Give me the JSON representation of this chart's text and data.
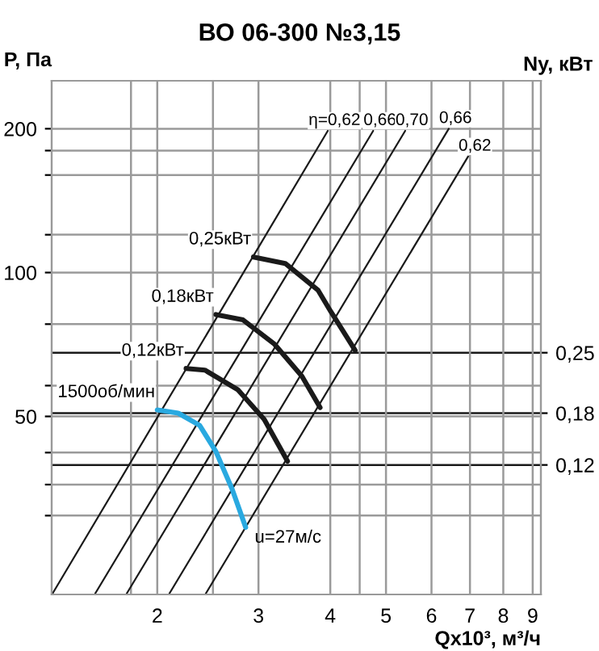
{
  "chart_data": {
    "type": "line",
    "title": "ВО 06-300 №3,15",
    "xlabel": "Qx10³, м³/ч",
    "ylabel": "P, Па",
    "y2label": "Ny, кВт",
    "log": "xy",
    "xlim": [
      1.31,
      9.3
    ],
    "ylim": [
      21.2,
      252
    ],
    "y2lim": [
      -0.03,
      0.565
    ],
    "xticks": [
      {
        "value": 1.8,
        "label": null
      },
      2,
      {
        "value": 2.5,
        "label": null
      },
      3,
      4,
      {
        "value": 4.5,
        "label": null
      },
      5,
      6,
      7,
      8,
      9
    ],
    "yticks": [
      {
        "value": 31,
        "label": null
      },
      {
        "value": 36,
        "label": null
      },
      {
        "value": 42,
        "label": null
      },
      50,
      {
        "value": 58,
        "label": null
      },
      {
        "value": 78,
        "label": null
      },
      100,
      {
        "value": 120,
        "label": null
      },
      {
        "value": 160,
        "label": null
      },
      {
        "value": 180,
        "label": null
      },
      200
    ],
    "y2ticks": [
      {
        "value": 0.12,
        "label": "0,12"
      },
      {
        "value": 0.18,
        "label": "0,18"
      },
      {
        "value": 0.25,
        "label": "0,25"
      }
    ],
    "grid": true,
    "marker": "none",
    "line_style": "solid",
    "series": [
      {
        "color": "#1a1a1a",
        "x": [
          1.315,
          3.96
        ],
        "values": [
          21.3,
          198
        ]
      },
      {
        "color": "#1a1a1a",
        "x": [
          1.56,
          4.75
        ],
        "values": [
          21.3,
          198
        ]
      },
      {
        "color": "#1a1a1a",
        "x": [
          1.77,
          5.4
        ],
        "values": [
          21.3,
          198
        ]
      },
      {
        "color": "#1a1a1a",
        "x": [
          2.1,
          6.43
        ],
        "values": [
          21.3,
          200
        ]
      },
      {
        "color": "#1a1a1a",
        "x": [
          2.43,
          6.95
        ],
        "values": [
          21.3,
          175
        ]
      },
      {
        "name": "1500об/мин",
        "color": "#29a9e0",
        "x": [
          2.0,
          2.175,
          2.37,
          2.53,
          2.7,
          2.85
        ],
        "values": [
          51.6,
          50.8,
          47.9,
          42.2,
          35.2,
          29.3
        ]
      },
      {
        "name": "0,12кВт",
        "color": "#1a1a1a",
        "x": [
          2.245,
          2.42,
          2.76,
          3.07,
          3.37
        ],
        "values": [
          63.0,
          62.5,
          56.9,
          49.3,
          40.3
        ]
      },
      {
        "name": "0,18кВт",
        "color": "#1a1a1a",
        "x": [
          2.53,
          2.82,
          3.2,
          3.57,
          3.84
        ],
        "values": [
          81.7,
          79.6,
          70.8,
          60.7,
          52.2
        ]
      },
      {
        "name": "0,25кВт",
        "color": "#1a1a1a",
        "x": [
          2.94,
          3.34,
          3.81,
          4.01,
          4.42
        ],
        "values": [
          107.8,
          104.5,
          91.8,
          82.8,
          68.7
        ]
      }
    ],
    "annotations": [
      {
        "text": "η=0,62",
        "x": 3.96,
        "y": 198
      },
      {
        "text": "0,66",
        "x": 4.75,
        "y": 198
      },
      {
        "text": "0,70",
        "x": 5.4,
        "y": 198
      },
      {
        "text": "0,66",
        "x": 6.43,
        "y": 200
      },
      {
        "text": "0,62",
        "x": 6.95,
        "y": 175
      },
      {
        "text": "u=27м/с",
        "x": 2.85,
        "y": 29.3
      }
    ]
  }
}
